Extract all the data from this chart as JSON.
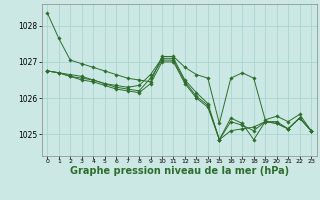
{
  "background_color": "#cce8e4",
  "grid_color": "#aad4d0",
  "line_color": "#2d6e2d",
  "marker_color": "#2d6e2d",
  "xlabel": "Graphe pression niveau de la mer (hPa)",
  "xlabel_fontsize": 7,
  "ylabel_ticks": [
    1025,
    1026,
    1027,
    1028
  ],
  "xlim": [
    -0.5,
    23.5
  ],
  "ylim": [
    1024.4,
    1028.6
  ],
  "xticks": [
    0,
    1,
    2,
    3,
    4,
    5,
    6,
    7,
    8,
    9,
    10,
    11,
    12,
    13,
    14,
    15,
    16,
    17,
    18,
    19,
    20,
    21,
    22,
    23
  ],
  "series": [
    [
      1028.35,
      1027.65,
      1027.05,
      1026.95,
      1026.85,
      1026.75,
      1026.65,
      1026.55,
      1026.5,
      1026.45,
      1027.15,
      1027.15,
      1026.85,
      1026.65,
      1026.55,
      1025.3,
      1026.55,
      1026.7,
      1026.55,
      1025.4,
      1025.5,
      1025.35,
      1025.55,
      1025.1
    ],
    [
      1026.75,
      1026.7,
      1026.65,
      1026.6,
      1026.5,
      1026.4,
      1026.35,
      1026.3,
      1026.35,
      1026.65,
      1027.1,
      1027.1,
      1026.5,
      1026.15,
      1025.85,
      1024.85,
      1025.1,
      1025.15,
      1025.2,
      1025.35,
      1025.35,
      1025.15,
      1025.45,
      1025.1
    ],
    [
      1026.75,
      1026.7,
      1026.6,
      1026.55,
      1026.5,
      1026.4,
      1026.3,
      1026.25,
      1026.2,
      1026.55,
      1027.05,
      1027.05,
      1026.45,
      1026.05,
      1025.8,
      1024.85,
      1025.35,
      1025.25,
      1025.1,
      1025.35,
      1025.3,
      1025.15,
      1025.45,
      1025.1
    ],
    [
      1026.75,
      1026.7,
      1026.6,
      1026.5,
      1026.45,
      1026.35,
      1026.25,
      1026.2,
      1026.15,
      1026.4,
      1027.0,
      1027.0,
      1026.4,
      1026.0,
      1025.75,
      1024.85,
      1025.45,
      1025.3,
      1024.85,
      1025.35,
      1025.3,
      1025.15,
      1025.45,
      1025.1
    ]
  ]
}
